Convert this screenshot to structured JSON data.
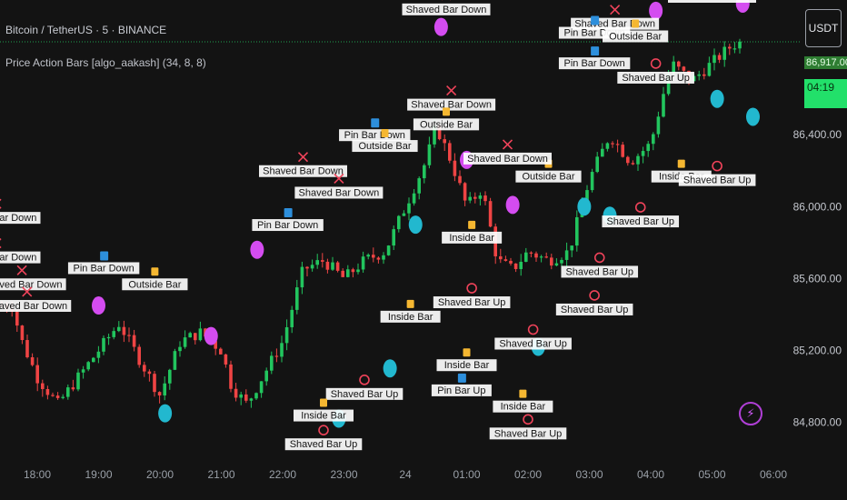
{
  "header": {
    "symbol_line": "Bitcoin / TetherUS · 5 · BINANCE",
    "indicator_line": "Price Action Bars [algo_aakash] (34, 8, 8)"
  },
  "quote_badge": "USDT",
  "last_price_label": "86,917.00",
  "countdown_label": "04:19",
  "colors": {
    "background": "#131313",
    "up_candle": "#22c55e",
    "down_candle": "#ef4444",
    "cyan_dot": "#22b8cf",
    "magenta_dot": "#d44cf0",
    "marker_red": "#f0435a",
    "pin_bar_icon": "#2d8fdc",
    "inside_bar_icon": "#f5b731",
    "label_box": "#ffffff",
    "label_text": "#131313"
  },
  "chart_data": {
    "type": "candlestick",
    "title": "",
    "xlabel": "",
    "ylabel": "",
    "grid": false,
    "y_range": [
      84580,
      87150
    ],
    "x_ticks": [
      "18:00",
      "19:00",
      "20:00",
      "21:00",
      "22:00",
      "23:00",
      "24",
      "01:00",
      "02:00",
      "03:00",
      "04:00",
      "05:00",
      "06:00"
    ],
    "y_ticks": [
      84800,
      85200,
      85600,
      86000,
      86400
    ],
    "y_tick_labels": [
      "84,800.00",
      "85,200.00",
      "85,600.00",
      "86,000.00",
      "86,400.00"
    ],
    "last_price": 86917,
    "close_path": [
      [
        "17:35",
        85450
      ],
      [
        "17:45",
        85250
      ],
      [
        "18:00",
        85050
      ],
      [
        "18:20",
        84900
      ],
      [
        "18:40",
        85050
      ],
      [
        "19:00",
        85200
      ],
      [
        "19:20",
        85350
      ],
      [
        "19:40",
        85150
      ],
      [
        "20:00",
        84950
      ],
      [
        "20:20",
        85250
      ],
      [
        "20:40",
        85300
      ],
      [
        "21:00",
        85200
      ],
      [
        "21:10",
        85000
      ],
      [
        "21:25",
        84900
      ],
      [
        "21:40",
        85050
      ],
      [
        "22:00",
        85250
      ],
      [
        "22:20",
        85650
      ],
      [
        "22:40",
        85700
      ],
      [
        "23:00",
        85600
      ],
      [
        "23:20",
        85700
      ],
      [
        "23:40",
        85750
      ],
      [
        "24:00",
        86000
      ],
      [
        "00:20",
        86250
      ],
      [
        "00:30",
        86450
      ],
      [
        "00:45",
        86250
      ],
      [
        "01:00",
        86000
      ],
      [
        "01:15",
        86100
      ],
      [
        "01:30",
        85700
      ],
      [
        "01:45",
        85650
      ],
      [
        "02:00",
        85750
      ],
      [
        "02:20",
        85700
      ],
      [
        "02:40",
        85750
      ],
      [
        "03:00",
        86150
      ],
      [
        "03:20",
        86400
      ],
      [
        "03:40",
        86250
      ],
      [
        "04:00",
        86350
      ],
      [
        "04:20",
        86800
      ],
      [
        "04:40",
        86700
      ],
      [
        "05:00",
        86800
      ],
      [
        "05:20",
        86900
      ],
      [
        "05:30",
        86917
      ]
    ],
    "pattern_labels": {
      "shaved_bar_down": "Shaved Bar Down",
      "shaved_bar_up": "Shaved Bar Up",
      "pin_bar_down": "Pin Bar Down",
      "pin_bar_up": "Pin Bar Up",
      "inside_bar": "Inside Bar",
      "outside_bar": "Outside Bar"
    },
    "annotations": [
      {
        "pattern": "shaved_bar_down",
        "time": "00:40",
        "price": 87080
      },
      {
        "pattern": "shaved_bar_down",
        "time": "03:25",
        "price": 87000
      },
      {
        "pattern": "shaved_bar_down",
        "time": "05:00",
        "price": 87150
      },
      {
        "pattern": "pin_bar_down",
        "time": "03:05",
        "price": 86950
      },
      {
        "pattern": "outside_bar",
        "time": "03:45",
        "price": 86930
      },
      {
        "pattern": "pin_bar_down",
        "time": "03:05",
        "price": 86780
      },
      {
        "pattern": "shaved_bar_down",
        "time": "00:45",
        "price": 86550
      },
      {
        "pattern": "outside_bar",
        "time": "00:40",
        "price": 86440
      },
      {
        "pattern": "pin_bar_down",
        "time": "23:30",
        "price": 86380
      },
      {
        "pattern": "outside_bar",
        "time": "23:40",
        "price": 86320
      },
      {
        "pattern": "shaved_bar_down",
        "time": "22:20",
        "price": 86180
      },
      {
        "pattern": "shaved_bar_down",
        "time": "22:55",
        "price": 86060
      },
      {
        "pattern": "pin_bar_down",
        "time": "22:05",
        "price": 85880
      },
      {
        "pattern": "shaved_bar_down",
        "time": "17:20",
        "price": 85920
      },
      {
        "pattern": "shaved_bar_down",
        "time": "17:20",
        "price": 85700
      },
      {
        "pattern": "shaved_bar_down",
        "time": "17:45",
        "price": 85550
      },
      {
        "pattern": "shaved_bar_down",
        "time": "17:50",
        "price": 85430
      },
      {
        "pattern": "pin_bar_down",
        "time": "19:05",
        "price": 85640
      },
      {
        "pattern": "outside_bar",
        "time": "19:55",
        "price": 85550
      },
      {
        "pattern": "outside_bar",
        "time": "02:20",
        "price": 86150
      },
      {
        "pattern": "shaved_bar_down",
        "time": "01:40",
        "price": 86250
      },
      {
        "pattern": "inside_bar",
        "time": "01:05",
        "price": 85810
      },
      {
        "pattern": "shaved_bar_up",
        "time": "04:05",
        "price": 86700
      },
      {
        "pattern": "inside_bar",
        "time": "04:30",
        "price": 86150
      },
      {
        "pattern": "shaved_bar_up",
        "time": "05:05",
        "price": 86130
      },
      {
        "pattern": "shaved_bar_up",
        "time": "03:50",
        "price": 85900
      },
      {
        "pattern": "shaved_bar_up",
        "time": "03:10",
        "price": 85620
      },
      {
        "pattern": "shaved_bar_up",
        "time": "03:05",
        "price": 85410
      },
      {
        "pattern": "shaved_bar_up",
        "time": "02:05",
        "price": 85220
      },
      {
        "pattern": "shaved_bar_up",
        "time": "01:05",
        "price": 85450
      },
      {
        "pattern": "inside_bar",
        "time": "00:05",
        "price": 85370
      },
      {
        "pattern": "inside_bar",
        "time": "01:00",
        "price": 85100
      },
      {
        "pattern": "pin_bar_up",
        "time": "00:55",
        "price": 84960
      },
      {
        "pattern": "inside_bar",
        "time": "01:55",
        "price": 84870
      },
      {
        "pattern": "shaved_bar_up",
        "time": "02:00",
        "price": 84720
      },
      {
        "pattern": "shaved_bar_up",
        "time": "23:20",
        "price": 84940
      },
      {
        "pattern": "inside_bar",
        "time": "22:40",
        "price": 84820
      },
      {
        "pattern": "shaved_bar_up",
        "time": "22:40",
        "price": 84660
      }
    ],
    "dot_markers": [
      {
        "type": "magenta",
        "time": "00:35",
        "price": 87000
      },
      {
        "type": "magenta",
        "time": "04:05",
        "price": 87090
      },
      {
        "type": "magenta",
        "time": "05:30",
        "price": 87130
      },
      {
        "type": "cyan",
        "time": "05:05",
        "price": 86600
      },
      {
        "type": "cyan",
        "time": "05:40",
        "price": 86500
      },
      {
        "type": "magenta",
        "time": "01:00",
        "price": 86260
      },
      {
        "type": "magenta",
        "time": "01:45",
        "price": 86010
      },
      {
        "type": "magenta",
        "time": "21:35",
        "price": 85760
      },
      {
        "type": "magenta",
        "time": "19:00",
        "price": 85450
      },
      {
        "type": "magenta",
        "time": "20:50",
        "price": 85280
      },
      {
        "type": "cyan",
        "time": "00:10",
        "price": 85900
      },
      {
        "type": "cyan",
        "time": "02:55",
        "price": 86000
      },
      {
        "type": "cyan",
        "time": "03:20",
        "price": 85950
      },
      {
        "type": "cyan",
        "time": "02:10",
        "price": 85220
      },
      {
        "type": "cyan",
        "time": "23:45",
        "price": 85100
      },
      {
        "type": "cyan",
        "time": "22:55",
        "price": 84820
      },
      {
        "type": "cyan",
        "time": "20:05",
        "price": 84850
      },
      {
        "type": "cyan",
        "time": "17:10",
        "price": 84700
      }
    ]
  }
}
